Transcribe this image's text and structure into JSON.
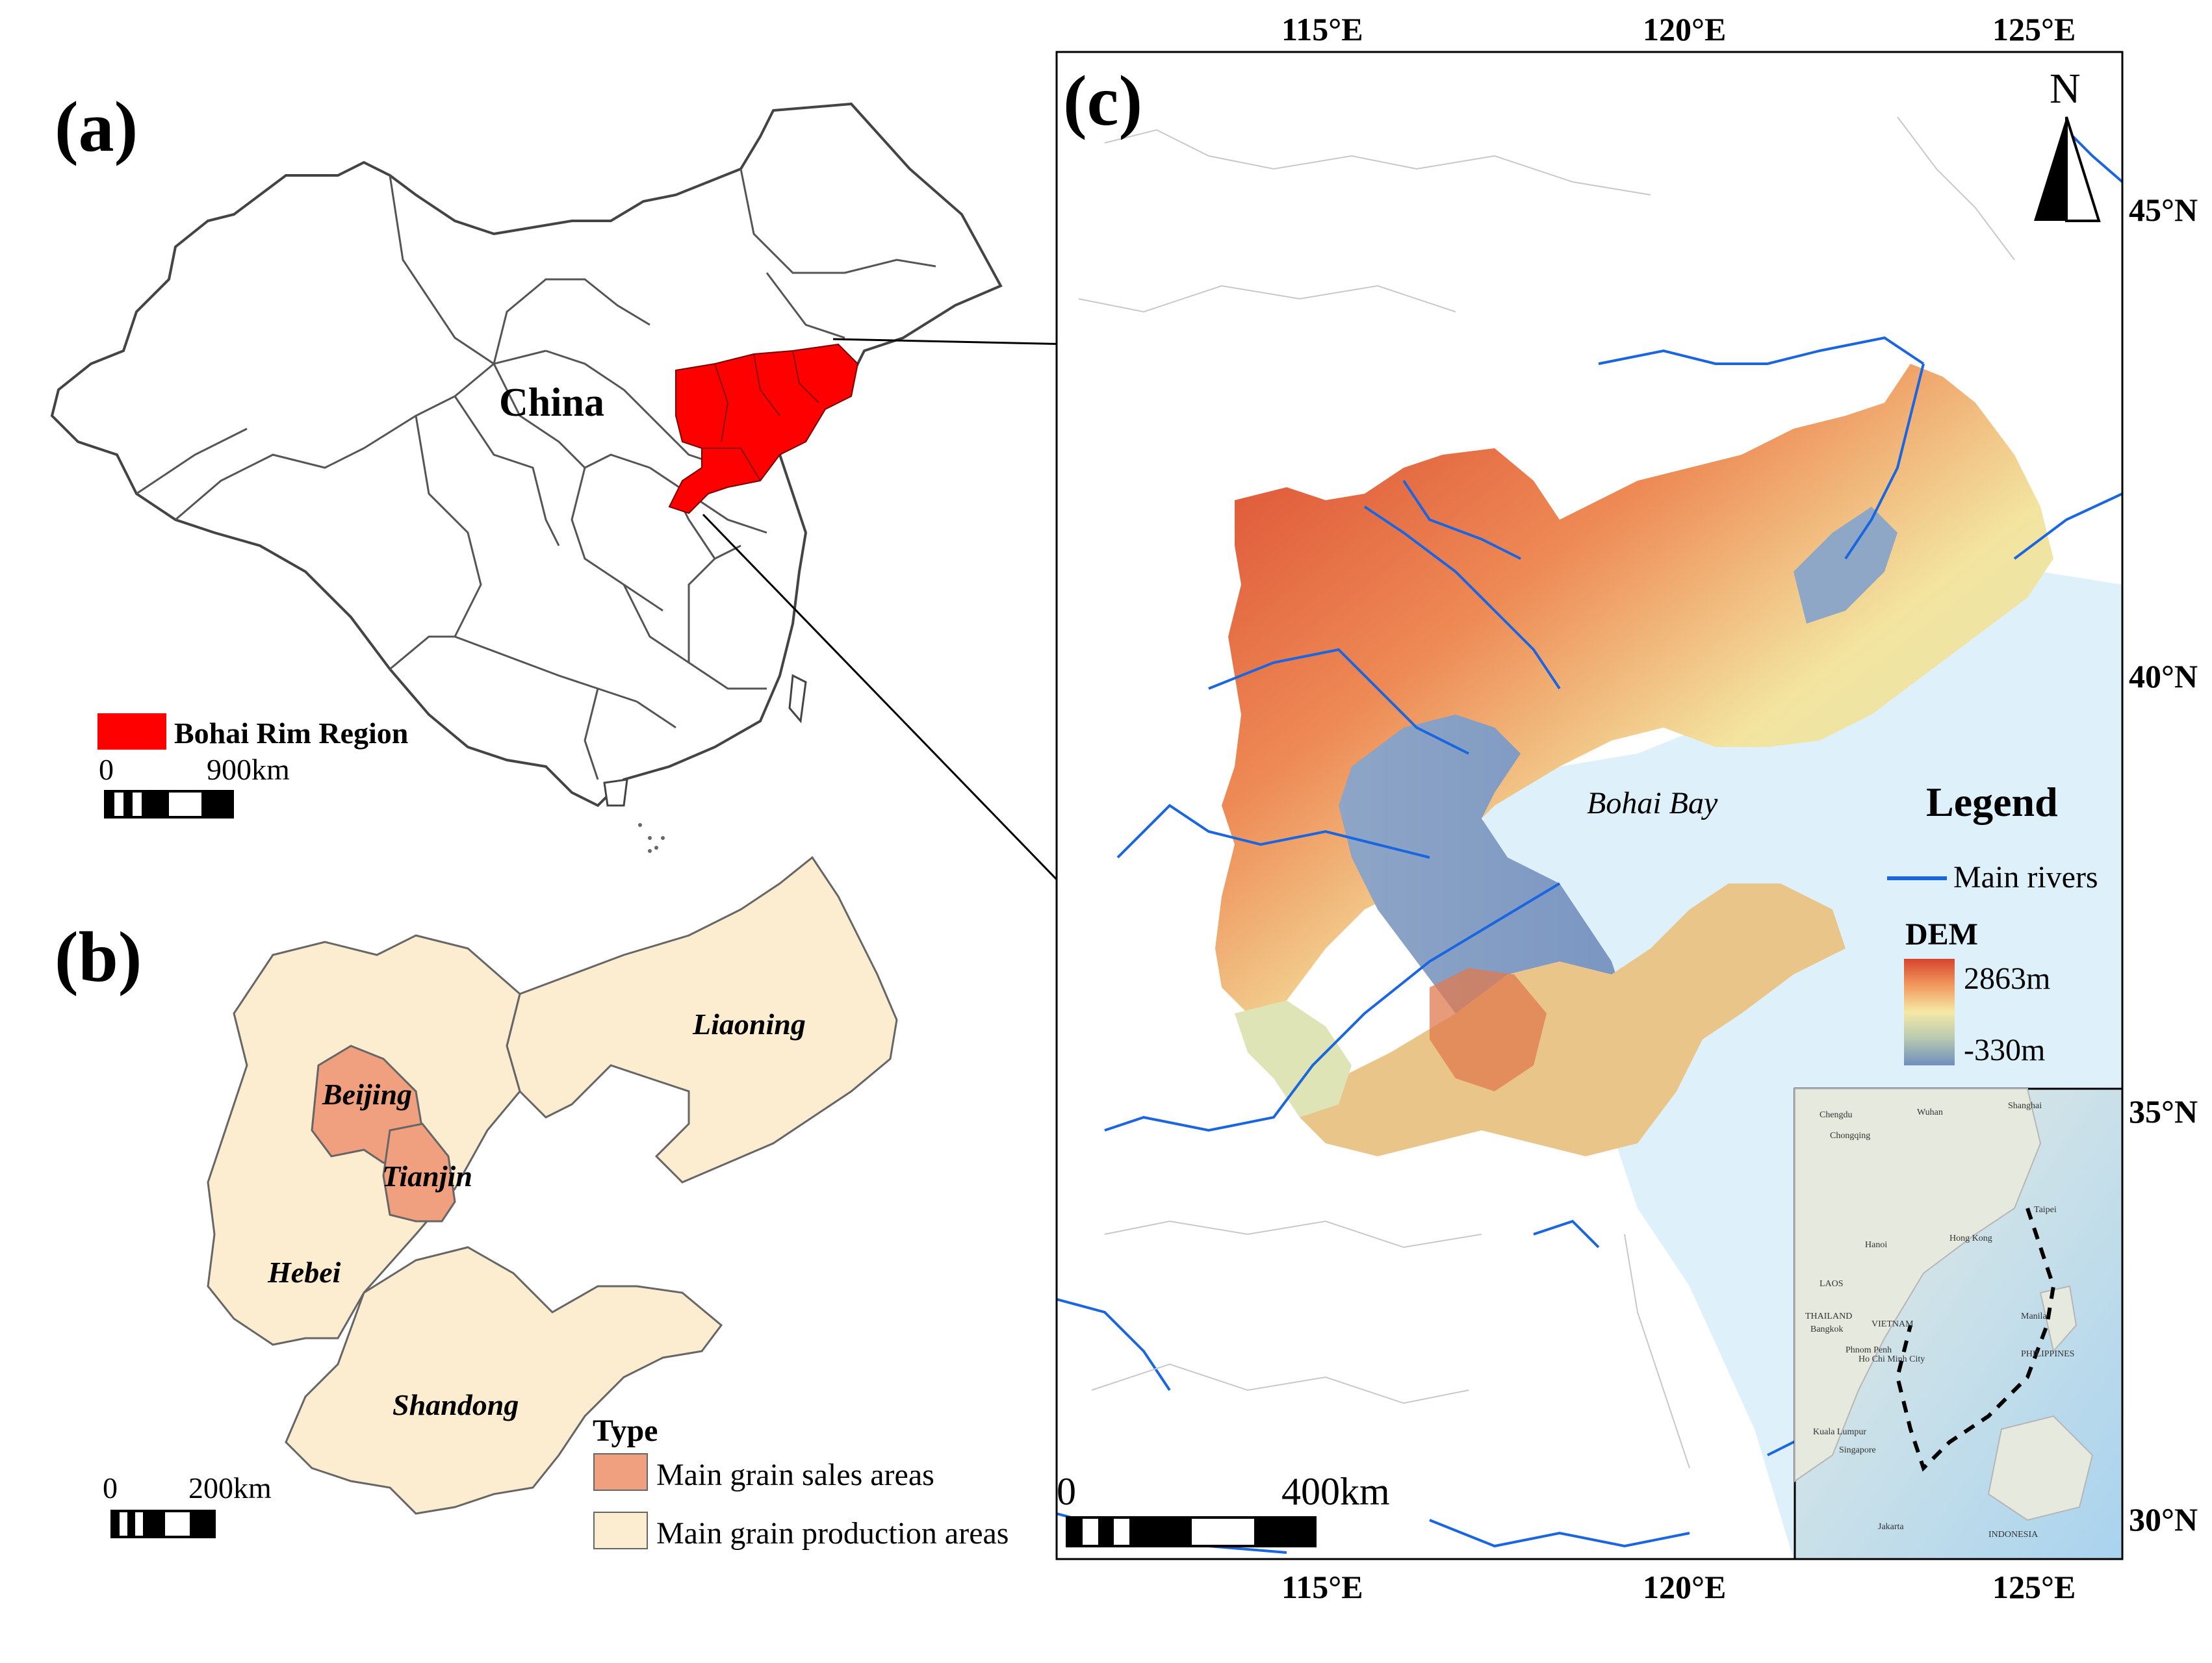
{
  "panel_a": {
    "label": "(a)",
    "country_label": "China",
    "legend_label": "Bohai Rim Region",
    "legend_color": "#ff0000",
    "scale": {
      "zero": "0",
      "end": "900km"
    }
  },
  "panel_b": {
    "label": "(b)",
    "provinces": [
      "Beijing",
      "Tianjin",
      "Hebei",
      "Liaoning",
      "Shandong"
    ],
    "legend_title": "Type",
    "legend_items": [
      {
        "label": "Main grain sales areas",
        "color": "#f0a07e"
      },
      {
        "label": "Main grain production areas",
        "color": "#fcecd0"
      }
    ],
    "scale": {
      "zero": "0",
      "end": "200km"
    }
  },
  "panel_c": {
    "label": "(c)",
    "north_label": "N",
    "bay_label": "Bohai Bay",
    "legend_title": "Legend",
    "legend_river": "Main rivers",
    "dem_title": "DEM",
    "dem_high": "2863m",
    "dem_low": "-330m",
    "dem_colors": [
      "#d7442e",
      "#f29a5e",
      "#f5e9a6",
      "#b7c9b0",
      "#6f8fbe"
    ],
    "river_color": "#1a66e0",
    "sea_color": "#def1fb",
    "top_ticks": [
      "115°E",
      "120°E",
      "125°E"
    ],
    "bottom_ticks": [
      "115°E",
      "120°E",
      "125°E"
    ],
    "right_ticks": [
      "45°N",
      "40°N",
      "35°N",
      "30°N"
    ],
    "scale": {
      "zero": "0",
      "end": "400km"
    }
  },
  "inset_labels": [
    "Chengdu",
    "Wuhan",
    "Shanghai",
    "Chongqing",
    "Taipei",
    "Hanoi",
    "Hong Kong",
    "LAOS",
    "THAILAND",
    "VIETNAM",
    "Bangkok",
    "Manila",
    "PHILIPPINES",
    "Phnom Penh",
    "Ho Chi Minh City",
    "Kuala Lumpur",
    "Singapore",
    "Jakarta",
    "INDONESIA"
  ]
}
